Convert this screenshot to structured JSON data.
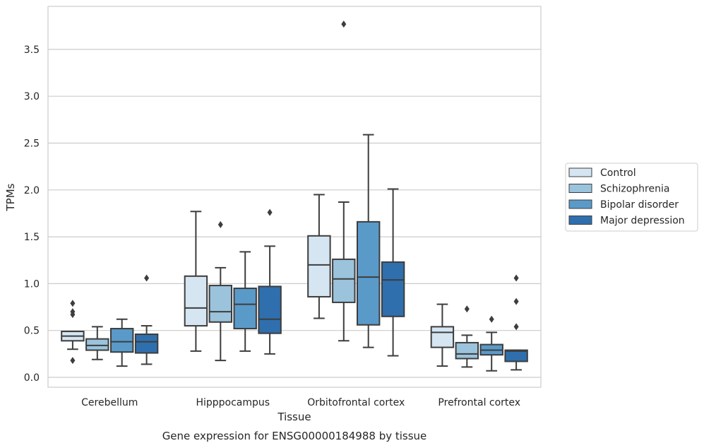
{
  "chart_data": {
    "type": "box",
    "title": "",
    "caption": "Gene expression for ENSG00000184988 by tissue",
    "xlabel": "Tissue",
    "ylabel": "TPMs",
    "ylim": [
      -0.1,
      3.95
    ],
    "yticks": [
      "0.0",
      "0.5",
      "1.0",
      "1.5",
      "2.0",
      "2.5",
      "3.0",
      "3.5"
    ],
    "grid": "horizontal",
    "legend_position": "right",
    "categories": [
      "Cerebellum",
      "Hipppocampus",
      "Orbitofrontal cortex",
      "Prefrontal cortex"
    ],
    "series": [
      {
        "name": "Control",
        "color": "#d6e5f2",
        "boxes": [
          {
            "whislo": 0.3,
            "q1": 0.39,
            "med": 0.44,
            "q3": 0.49,
            "whishi": 0.49,
            "fliers": [
              0.79,
              0.7,
              0.67,
              0.18
            ]
          },
          {
            "whislo": 0.28,
            "q1": 0.55,
            "med": 0.74,
            "q3": 1.08,
            "whishi": 1.77,
            "fliers": []
          },
          {
            "whislo": 0.63,
            "q1": 0.86,
            "med": 1.2,
            "q3": 1.51,
            "whishi": 1.95,
            "fliers": []
          },
          {
            "whislo": 0.12,
            "q1": 0.32,
            "med": 0.48,
            "q3": 0.54,
            "whishi": 0.78,
            "fliers": []
          }
        ]
      },
      {
        "name": "Schizophrenia",
        "color": "#9bc3dc",
        "boxes": [
          {
            "whislo": 0.19,
            "q1": 0.29,
            "med": 0.34,
            "q3": 0.41,
            "whishi": 0.54,
            "fliers": []
          },
          {
            "whislo": 0.18,
            "q1": 0.59,
            "med": 0.7,
            "q3": 0.98,
            "whishi": 1.17,
            "fliers": [
              1.63
            ]
          },
          {
            "whislo": 0.39,
            "q1": 0.8,
            "med": 1.05,
            "q3": 1.26,
            "whishi": 1.87,
            "fliers": [
              3.77
            ]
          },
          {
            "whislo": 0.11,
            "q1": 0.2,
            "med": 0.25,
            "q3": 0.37,
            "whishi": 0.45,
            "fliers": [
              0.73
            ]
          }
        ]
      },
      {
        "name": "Bipolar disorder",
        "color": "#5a9ac9",
        "boxes": [
          {
            "whislo": 0.12,
            "q1": 0.27,
            "med": 0.38,
            "q3": 0.52,
            "whishi": 0.62,
            "fliers": []
          },
          {
            "whislo": 0.28,
            "q1": 0.52,
            "med": 0.78,
            "q3": 0.95,
            "whishi": 1.34,
            "fliers": []
          },
          {
            "whislo": 0.32,
            "q1": 0.56,
            "med": 1.07,
            "q3": 1.66,
            "whishi": 2.59,
            "fliers": []
          },
          {
            "whislo": 0.07,
            "q1": 0.24,
            "med": 0.29,
            "q3": 0.35,
            "whishi": 0.48,
            "fliers": [
              0.62
            ]
          }
        ]
      },
      {
        "name": "Major depression",
        "color": "#2f6fae",
        "boxes": [
          {
            "whislo": 0.14,
            "q1": 0.26,
            "med": 0.38,
            "q3": 0.46,
            "whishi": 0.55,
            "fliers": [
              1.06
            ]
          },
          {
            "whislo": 0.25,
            "q1": 0.47,
            "med": 0.62,
            "q3": 0.97,
            "whishi": 1.4,
            "fliers": [
              1.76
            ]
          },
          {
            "whislo": 0.23,
            "q1": 0.65,
            "med": 1.04,
            "q3": 1.23,
            "whishi": 2.01,
            "fliers": []
          },
          {
            "whislo": 0.08,
            "q1": 0.17,
            "med": 0.28,
            "q3": 0.29,
            "whishi": 0.29,
            "fliers": [
              1.06,
              0.81,
              0.54
            ]
          }
        ]
      }
    ]
  }
}
